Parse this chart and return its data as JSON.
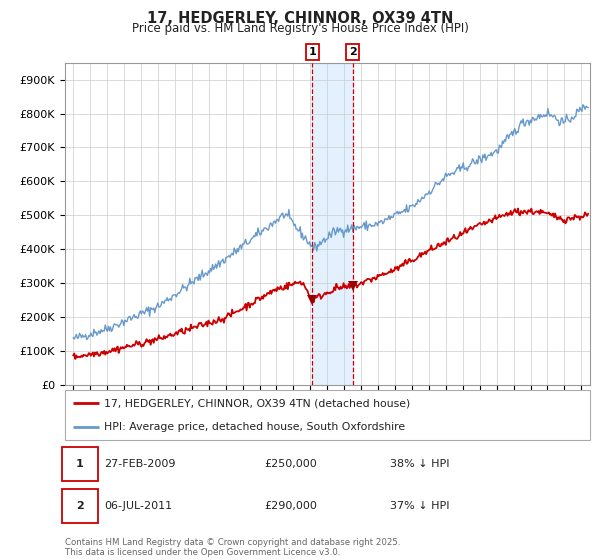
{
  "title_line1": "17, HEDGERLEY, CHINNOR, OX39 4TN",
  "title_line2": "Price paid vs. HM Land Registry's House Price Index (HPI)",
  "legend_entry1": "17, HEDGERLEY, CHINNOR, OX39 4TN (detached house)",
  "legend_entry2": "HPI: Average price, detached house, South Oxfordshire",
  "annotation1_date": "27-FEB-2009",
  "annotation1_price": "£250,000",
  "annotation1_hpi": "38% ↓ HPI",
  "annotation2_date": "06-JUL-2011",
  "annotation2_price": "£290,000",
  "annotation2_hpi": "37% ↓ HPI",
  "sale1_date_num": 2009.12,
  "sale1_price": 250000,
  "sale2_date_num": 2011.5,
  "sale2_price": 290000,
  "line1_color": "#cc0000",
  "line2_color": "#6699cc",
  "marker_color": "#990000",
  "annotation_box_color": "#cc0000",
  "shade_color": "#ddeeff",
  "vline_color": "#cc0000",
  "grid_color": "#cccccc",
  "bg_color": "#ffffff",
  "footer_text": "Contains HM Land Registry data © Crown copyright and database right 2025.\nThis data is licensed under the Open Government Licence v3.0.",
  "ylim": [
    0,
    950000
  ],
  "yticks": [
    0,
    100000,
    200000,
    300000,
    400000,
    500000,
    600000,
    700000,
    800000,
    900000
  ],
  "ytick_labels": [
    "£0",
    "£100K",
    "£200K",
    "£300K",
    "£400K",
    "£500K",
    "£600K",
    "£700K",
    "£800K",
    "£900K"
  ],
  "xlim_start": 1994.5,
  "xlim_end": 2025.5,
  "xticks": [
    1995,
    1996,
    1997,
    1998,
    1999,
    2000,
    2001,
    2002,
    2003,
    2004,
    2005,
    2006,
    2007,
    2008,
    2009,
    2010,
    2011,
    2012,
    2013,
    2014,
    2015,
    2016,
    2017,
    2018,
    2019,
    2020,
    2021,
    2022,
    2023,
    2024,
    2025
  ]
}
